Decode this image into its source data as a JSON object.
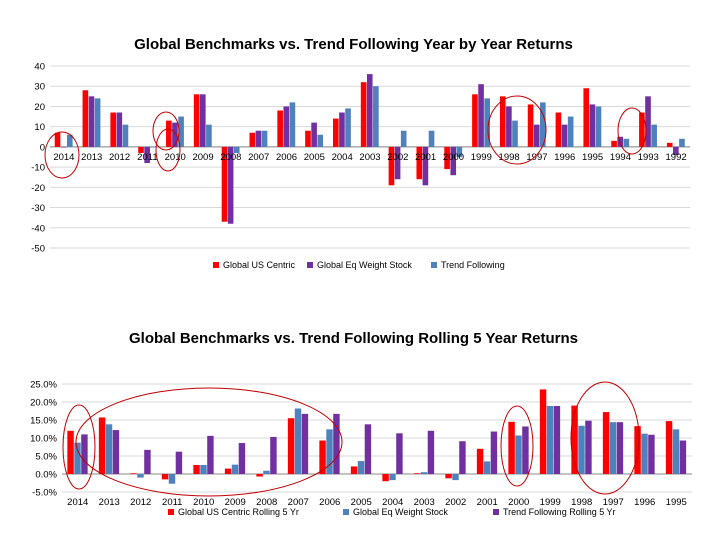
{
  "chart_data": [
    {
      "type": "bar",
      "title": "Global Benchmarks vs. Trend Following Year by Year Returns",
      "categories": [
        "2014",
        "2013",
        "2012",
        "2011",
        "2010",
        "2009",
        "2008",
        "2007",
        "2006",
        "2005",
        "2004",
        "2003",
        "2002",
        "2001",
        "2000",
        "1999",
        "1998",
        "1997",
        "1996",
        "1995",
        "1994",
        "1993",
        "1992"
      ],
      "series": [
        {
          "name": "Global US Centric",
          "color": "#ff0000",
          "values": [
            7,
            28,
            17,
            -3,
            13,
            26,
            -37,
            7,
            18,
            8,
            14,
            32,
            -19,
            -16,
            -11,
            26,
            25,
            21,
            17,
            29,
            3,
            17,
            2
          ]
        },
        {
          "name": "Global Eq Weight Stock",
          "color": "#7030a0",
          "values": [
            0,
            25,
            17,
            -8,
            12,
            26,
            -38,
            8,
            20,
            12,
            17,
            36,
            -16,
            -19,
            -14,
            31,
            20,
            11,
            11,
            21,
            5,
            25,
            -4
          ]
        },
        {
          "name": "Trend Following",
          "color": "#4f81bd",
          "values": [
            6,
            24,
            11,
            0,
            15,
            11,
            -3,
            8,
            22,
            6,
            19,
            30,
            8,
            8,
            -5,
            24,
            13,
            22,
            15,
            20,
            4,
            11,
            4
          ]
        }
      ],
      "ylim": [
        -50,
        40
      ],
      "yticks": [
        "40",
        "30",
        "20",
        "10",
        "0",
        "-10",
        "-20",
        "-30",
        "-40",
        "-50"
      ],
      "grid": true,
      "legend": "bottom",
      "annotations": "red circles highlight 2014, 2011, 2010, 1997-1996 and 1992"
    },
    {
      "type": "bar",
      "title": "Global Benchmarks vs. Trend Following Rolling 5 Year Returns",
      "categories": [
        "2014",
        "2013",
        "2012",
        "2011",
        "2010",
        "2009",
        "2008",
        "2007",
        "2006",
        "2005",
        "2004",
        "2003",
        "2002",
        "2001",
        "2000",
        "1999",
        "1998",
        "1997",
        "1996",
        "1995"
      ],
      "series": [
        {
          "name": "Global US Centric Rolling 5 Yr",
          "color": "#ff0000",
          "values": [
            12.0,
            15.7,
            0.2,
            -1.5,
            2.5,
            1.5,
            -0.7,
            15.5,
            9.3,
            2.1,
            -2.0,
            0.2,
            -1.2,
            7.0,
            14.5,
            23.5,
            19.0,
            17.2,
            13.3,
            14.7
          ]
        },
        {
          "name": "Global Eq Weight Stock",
          "color": "#4f81bd",
          "values": [
            8.7,
            13.8,
            -1.0,
            -2.7,
            2.5,
            2.6,
            0.9,
            18.2,
            12.4,
            3.6,
            -1.7,
            0.5,
            -1.7,
            3.5,
            10.7,
            18.9,
            13.4,
            14.4,
            11.2,
            12.4
          ]
        },
        {
          "name": "Trend Following Rolling 5 Yr",
          "color": "#7030a0",
          "values": [
            11.0,
            12.2,
            6.7,
            6.2,
            10.6,
            8.6,
            10.3,
            16.7,
            16.7,
            13.8,
            11.3,
            12.0,
            9.1,
            11.8,
            13.2,
            18.9,
            14.8,
            14.4,
            10.9,
            9.3
          ]
        }
      ],
      "ylim": [
        -5,
        25
      ],
      "yticks": [
        "25.0%",
        "20.0%",
        "15.0%",
        "10.0%",
        "5.0%",
        "0.0%",
        "-5.0%"
      ],
      "grid": true,
      "legend": "bottom",
      "annotations": "red circles highlight 2014, 2011-2008, 2000 and 1998-1997"
    }
  ]
}
